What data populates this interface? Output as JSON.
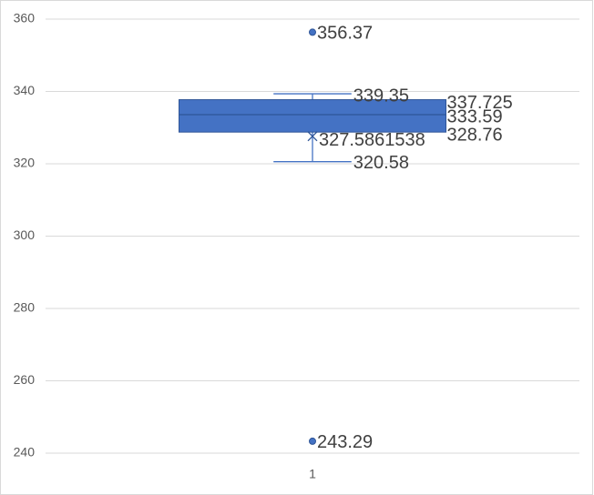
{
  "chart_data": {
    "type": "box",
    "categories": [
      "1"
    ],
    "box": {
      "color": "#4472c4",
      "whisker_low": 320.58,
      "q1": 328.76,
      "median": 333.59,
      "q3": 337.725,
      "whisker_high": 339.35,
      "mean": 327.5861538,
      "outliers": [
        356.37,
        243.29
      ]
    },
    "ylim": [
      240,
      360
    ],
    "yticks": [
      240,
      260,
      280,
      300,
      320,
      340,
      360
    ],
    "grid": true
  }
}
